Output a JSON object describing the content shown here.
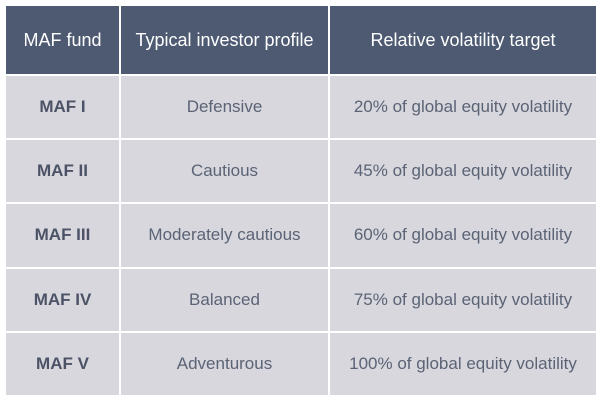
{
  "table": {
    "headers": [
      "MAF fund",
      "Typical investor profile",
      "Relative volatility target"
    ],
    "rows": [
      [
        "MAF I",
        "Defensive",
        "20% of global equity volatility"
      ],
      [
        "MAF II",
        "Cautious",
        "45% of global equity volatility"
      ],
      [
        "MAF III",
        "Moderately cautious",
        "60% of global equity volatility"
      ],
      [
        "MAF IV",
        "Balanced",
        "75% of global equity volatility"
      ],
      [
        "MAF V",
        "Adventurous",
        "100% of global equity volatility"
      ]
    ]
  },
  "colors": {
    "header_bg": "#4d5a72",
    "header_text": "#ffffff",
    "cell_bg": "#d7d7dd",
    "cell_text": "#5b6375"
  }
}
